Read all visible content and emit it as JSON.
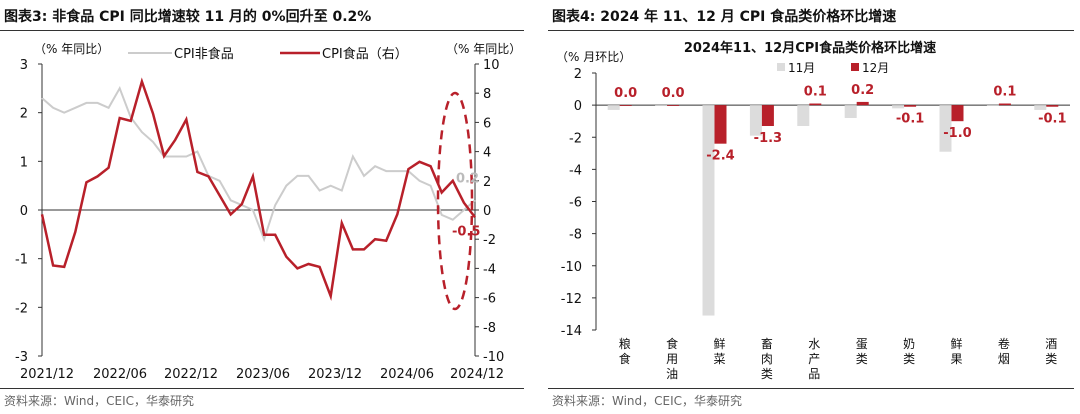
{
  "left": {
    "title": "图表3:   非食品 CPI 同比增速较 11 月的 0%回升至 0.2%",
    "source": "资料来源：Wind，CEIC，华泰研究",
    "chart_data": {
      "type": "line",
      "left_axis_label": "（% 年同比）",
      "right_axis_label": "（% 年同比）",
      "left_ylim": [
        -3,
        3
      ],
      "left_ticks": [
        "3",
        "2",
        "1",
        "0",
        "-1",
        "-2",
        "-3"
      ],
      "right_ylim": [
        -10,
        10
      ],
      "right_ticks": [
        "10",
        "8",
        "6",
        "4",
        "2",
        "0",
        "-2",
        "-4",
        "-6",
        "-8",
        "-10"
      ],
      "x_tick_labels": [
        "2021/12",
        "2022/06",
        "2022/12",
        "2023/06",
        "2023/12",
        "2024/06",
        "2024/12"
      ],
      "series": [
        {
          "name": "CPI非食品",
          "axis": "left",
          "color": "#cccccc",
          "values": [
            2.3,
            2.1,
            2.0,
            2.1,
            2.2,
            2.2,
            2.1,
            2.5,
            1.9,
            1.6,
            1.4,
            1.1,
            1.1,
            1.1,
            1.2,
            0.7,
            0.6,
            0.2,
            0.1,
            0.0,
            -0.6,
            0.1,
            0.5,
            0.7,
            0.7,
            0.4,
            0.5,
            0.4,
            1.1,
            0.7,
            0.9,
            0.8,
            0.8,
            0.8,
            0.6,
            0.5,
            -0.1,
            -0.2,
            0.0,
            0.2
          ]
        },
        {
          "name": "CPI食品（右）",
          "axis": "right",
          "color": "#b8202a",
          "values": [
            -0.3,
            -3.8,
            -3.9,
            -1.5,
            1.9,
            2.3,
            2.9,
            6.3,
            6.1,
            8.8,
            6.6,
            3.7,
            4.8,
            6.2,
            2.6,
            2.3,
            1.0,
            -0.3,
            0.4,
            2.3,
            -1.7,
            -1.7,
            -3.2,
            -4.0,
            -3.7,
            -3.9,
            -5.9,
            -0.9,
            -2.7,
            -2.7,
            -2.0,
            -2.1,
            -0.3,
            2.8,
            3.3,
            3.0,
            1.2,
            2.0,
            0.5,
            -0.5
          ]
        }
      ],
      "annotations": [
        {
          "text": "0.2",
          "series": "CPI非食品"
        },
        {
          "text": "-0.5",
          "series": "CPI食品（右）"
        }
      ]
    }
  },
  "right": {
    "title": "图表4:   2024 年 11、12 月 CPI 食品类价格环比增速",
    "source": "资料来源：Wind，CEIC，华泰研究",
    "chart_data": {
      "type": "bar",
      "title": "2024年11、12月CPI食品类价格环比增速",
      "ylabel": "（% 月环比）",
      "ylim": [
        -14,
        2
      ],
      "y_ticks": [
        "2",
        "0",
        "-2",
        "-4",
        "-6",
        "-8",
        "-10",
        "-12",
        "-14"
      ],
      "categories": [
        "粮食",
        "食用油",
        "鲜菜",
        "畜肉类",
        "水产品",
        "蛋类",
        "奶类",
        "鲜果",
        "卷烟",
        "酒类"
      ],
      "series": [
        {
          "name": "11月",
          "color": "#dcdcdc",
          "values": [
            -0.3,
            0.0,
            -13.1,
            -1.9,
            -1.3,
            -0.8,
            -0.2,
            -2.9,
            0.0,
            -0.3
          ]
        },
        {
          "name": "12月",
          "color": "#b8202a",
          "values": [
            0.0,
            0.0,
            -2.4,
            -1.3,
            0.1,
            0.2,
            -0.1,
            -1.0,
            0.1,
            -0.1
          ]
        }
      ],
      "data_labels": [
        "0.0",
        "0.0",
        "-2.4",
        "-1.3",
        "0.1",
        "0.2",
        "-0.1",
        "-1.0",
        "0.1",
        "-0.1"
      ]
    }
  }
}
